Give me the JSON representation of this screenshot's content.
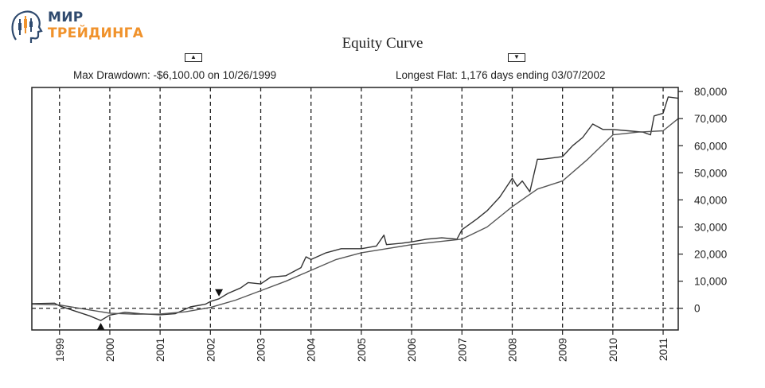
{
  "brand": {
    "line1": "МИР",
    "line2": "ТРЕЙДИНГА",
    "icon": "head-chart-logo-icon",
    "colors": {
      "primary": "#2f4a6e",
      "accent": "#f0922b"
    }
  },
  "chart_data": {
    "type": "line",
    "title": "Equity Curve",
    "annotations": {
      "max_drawdown": "Max Drawdown: -$6,100.00 on 10/26/1999",
      "longest_flat": "Longest Flat: 1,176 days ending 03/07/2002"
    },
    "x_ticks": [
      "1999",
      "2000",
      "2001",
      "2002",
      "2003",
      "2004",
      "2005",
      "2006",
      "2007",
      "2008",
      "2009",
      "2010",
      "2011"
    ],
    "x_range": [
      1998.45,
      2011.3
    ],
    "y_ticks": [
      0,
      10000,
      20000,
      30000,
      40000,
      50000,
      60000,
      70000,
      80000
    ],
    "y_tick_labels": [
      "0",
      "10,000",
      "20,000",
      "30,000",
      "40,000",
      "50,000",
      "60,000",
      "70,000",
      "80,000"
    ],
    "ylim": [
      -8000,
      81500
    ],
    "grid": "vertical dashed at year ticks, horizontal dashed at 0",
    "series": [
      {
        "role": "equity",
        "color": "#333333",
        "x": [
          1998.45,
          1998.9,
          1999.0,
          1999.3,
          1999.6,
          1999.82,
          2000.0,
          2000.3,
          2000.6,
          2001.0,
          2001.3,
          2001.6,
          2001.9,
          2002.0,
          2002.17,
          2002.35,
          2002.6,
          2002.75,
          2003.0,
          2003.2,
          2003.5,
          2003.8,
          2003.9,
          2004.0,
          2004.3,
          2004.6,
          2005.0,
          2005.3,
          2005.45,
          2005.5,
          2005.8,
          2006.0,
          2006.3,
          2006.6,
          2006.9,
          2007.0,
          2007.3,
          2007.5,
          2007.75,
          2008.0,
          2008.1,
          2008.2,
          2008.35,
          2008.5,
          2008.6,
          2009.0,
          2009.2,
          2009.4,
          2009.6,
          2009.8,
          2010.0,
          2010.3,
          2010.6,
          2010.75,
          2010.82,
          2011.0,
          2011.1,
          2011.3
        ],
        "y": [
          1700,
          1900,
          900,
          -1000,
          -2800,
          -4500,
          -2500,
          -1500,
          -2000,
          -2400,
          -2000,
          500,
          1500,
          2500,
          3500,
          5500,
          7500,
          9500,
          9000,
          11500,
          12000,
          15000,
          19000,
          18000,
          20500,
          22000,
          22000,
          23000,
          27000,
          23500,
          24000,
          24500,
          25500,
          26000,
          25500,
          29000,
          33000,
          36000,
          41000,
          48000,
          45000,
          47000,
          43000,
          55000,
          55000,
          56000,
          60000,
          63000,
          68000,
          66000,
          66000,
          65500,
          65000,
          64000,
          71000,
          72000,
          78000,
          77500
        ]
      },
      {
        "role": "moving-average",
        "color": "#555555",
        "x": [
          1998.45,
          1999.0,
          1999.5,
          2000.0,
          2000.5,
          2001.0,
          2001.5,
          2002.0,
          2002.5,
          2003.0,
          2003.5,
          2004.0,
          2004.5,
          2005.0,
          2005.5,
          2006.0,
          2006.5,
          2007.0,
          2007.5,
          2008.0,
          2008.5,
          2009.0,
          2009.5,
          2010.0,
          2010.5,
          2011.0,
          2011.3
        ],
        "y": [
          1500,
          1200,
          -300,
          -1800,
          -2200,
          -2100,
          -1300,
          300,
          3000,
          6500,
          10000,
          14000,
          18000,
          20500,
          22000,
          23500,
          24500,
          25500,
          30000,
          37500,
          44000,
          47000,
          55000,
          64000,
          65000,
          65500,
          70000
        ]
      }
    ],
    "markers": [
      {
        "shape": "triangle-up",
        "x": 1999.82,
        "y": -4500
      },
      {
        "shape": "triangle-down",
        "x": 2002.17,
        "y": 3500
      }
    ]
  }
}
